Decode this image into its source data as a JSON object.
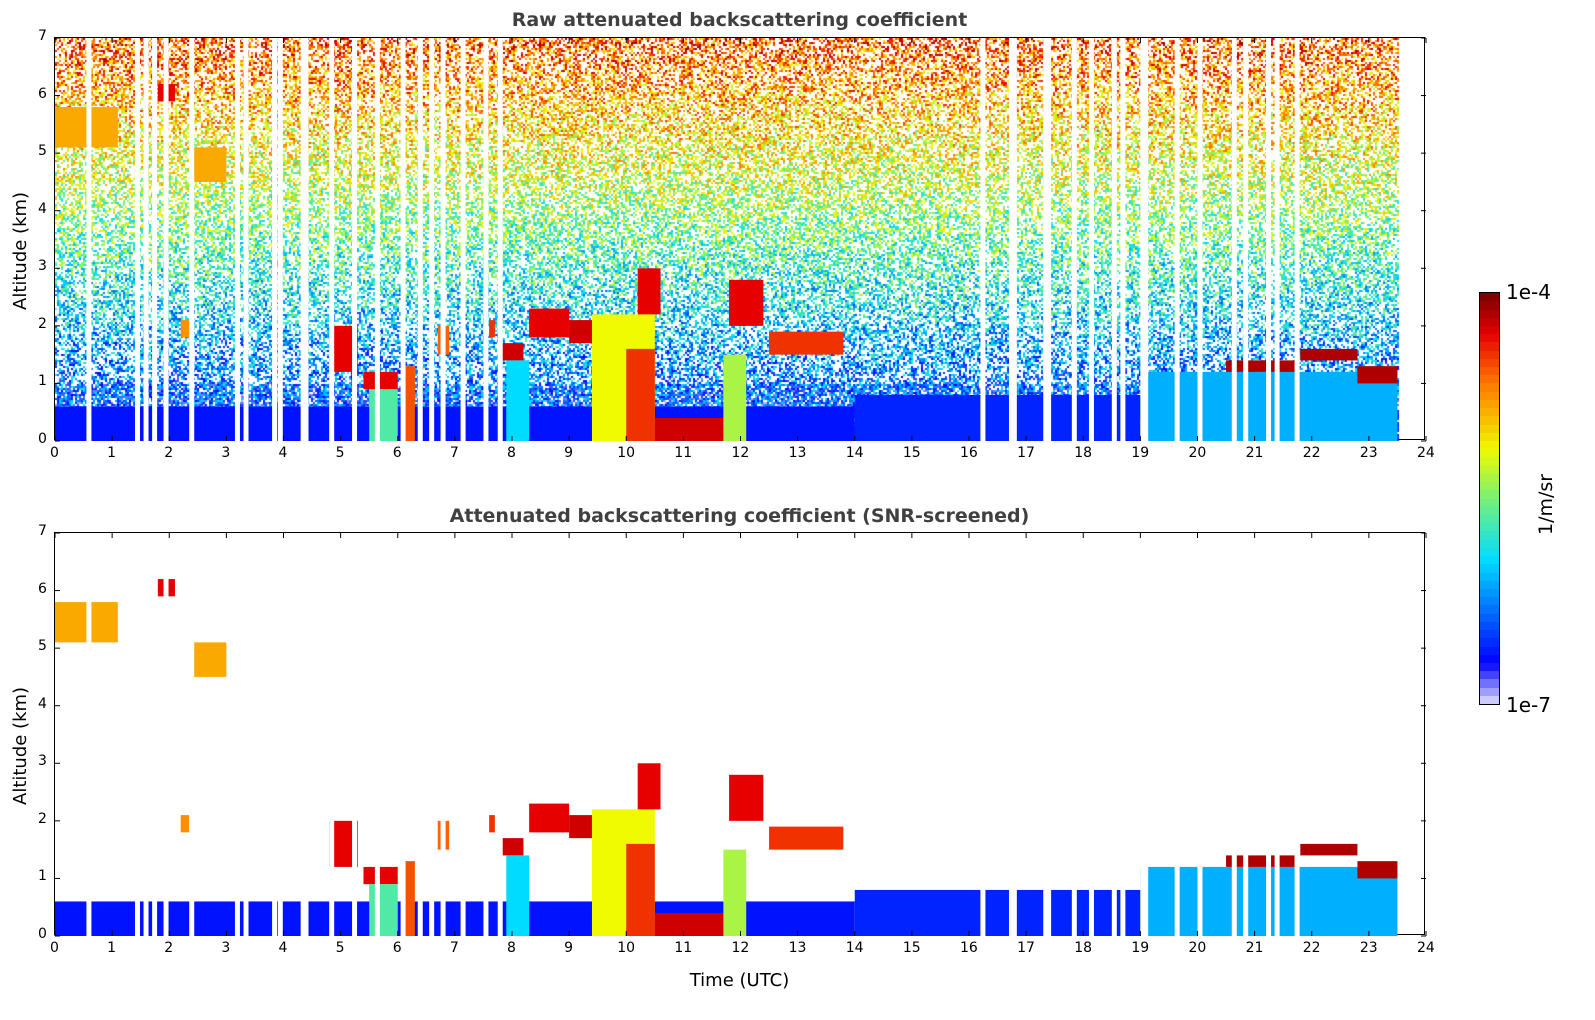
{
  "chart_data": [
    {
      "type": "heatmap",
      "title": "Raw attenuated backscattering coefficient",
      "xlabel": "",
      "ylabel": "Altitude (km)",
      "xlim": [
        0,
        24
      ],
      "ylim": [
        0,
        7
      ],
      "xticks": [
        "0",
        "1",
        "2",
        "3",
        "4",
        "5",
        "6",
        "7",
        "8",
        "9",
        "10",
        "11",
        "12",
        "13",
        "14",
        "15",
        "16",
        "17",
        "18",
        "19",
        "20",
        "21",
        "22",
        "23",
        "24"
      ],
      "yticks": [
        "0",
        "1",
        "2",
        "3",
        "4",
        "5",
        "6",
        "7"
      ],
      "noise": true
    },
    {
      "type": "heatmap",
      "title": "Attenuated backscattering coefficient (SNR-screened)",
      "xlabel": "Time (UTC)",
      "ylabel": "Altitude (km)",
      "xlim": [
        0,
        24
      ],
      "ylim": [
        0,
        7
      ],
      "xticks": [
        "0",
        "1",
        "2",
        "3",
        "4",
        "5",
        "6",
        "7",
        "8",
        "9",
        "10",
        "11",
        "12",
        "13",
        "14",
        "15",
        "16",
        "17",
        "18",
        "19",
        "20",
        "21",
        "22",
        "23",
        "24"
      ],
      "yticks": [
        "0",
        "1",
        "2",
        "3",
        "4",
        "5",
        "6",
        "7"
      ],
      "noise": false
    }
  ],
  "colorbar": {
    "label": "1/m/sr",
    "min_label": "1e-7",
    "max_label": "1e-4",
    "scale": "log",
    "range": [
      1e-07,
      0.0001
    ]
  },
  "layers": [
    {
      "t": [
        0,
        14
      ],
      "z": [
        0,
        0.6
      ],
      "level": 0.12
    },
    {
      "t": [
        14,
        19
      ],
      "z": [
        0,
        0.8
      ],
      "level": 0.14
    },
    {
      "t": [
        19,
        23.5
      ],
      "z": [
        0,
        1.2
      ],
      "level": 0.3
    },
    {
      "t": [
        0,
        1.1
      ],
      "z": [
        5.1,
        5.8
      ],
      "level": 0.72
    },
    {
      "t": [
        1.8,
        2.1
      ],
      "z": [
        5.9,
        6.2
      ],
      "level": 0.9
    },
    {
      "t": [
        2.2,
        2.35
      ],
      "z": [
        1.8,
        2.1
      ],
      "level": 0.75
    },
    {
      "t": [
        2.4,
        3.0
      ],
      "z": [
        4.5,
        5.1
      ],
      "level": 0.72
    },
    {
      "t": [
        4.8,
        5.3
      ],
      "z": [
        1.2,
        2.0
      ],
      "level": 0.9
    },
    {
      "t": [
        5.4,
        6.0
      ],
      "z": [
        0.9,
        1.2
      ],
      "level": 0.9
    },
    {
      "t": [
        5.5,
        6.0
      ],
      "z": [
        0,
        0.9
      ],
      "level": 0.45
    },
    {
      "t": [
        6.1,
        6.3
      ],
      "z": [
        0,
        1.3
      ],
      "level": 0.82
    },
    {
      "t": [
        6.7,
        6.9
      ],
      "z": [
        1.5,
        2.0
      ],
      "level": 0.8
    },
    {
      "t": [
        7.6,
        7.7
      ],
      "z": [
        1.8,
        2.1
      ],
      "level": 0.85
    },
    {
      "t": [
        7.8,
        8.2
      ],
      "z": [
        1.4,
        1.7
      ],
      "level": 0.92
    },
    {
      "t": [
        7.9,
        8.3
      ],
      "z": [
        0,
        1.4
      ],
      "level": 0.35
    },
    {
      "t": [
        8.3,
        9.0
      ],
      "z": [
        1.8,
        2.3
      ],
      "level": 0.9
    },
    {
      "t": [
        9.0,
        9.4
      ],
      "z": [
        1.7,
        2.1
      ],
      "level": 0.92
    },
    {
      "t": [
        9.4,
        10.5
      ],
      "z": [
        0,
        2.2
      ],
      "level": 0.62
    },
    {
      "t": [
        10.0,
        10.5
      ],
      "z": [
        0,
        1.6
      ],
      "level": 0.85
    },
    {
      "t": [
        10.2,
        10.6
      ],
      "z": [
        2.2,
        3.0
      ],
      "level": 0.9
    },
    {
      "t": [
        10.5,
        11.7
      ],
      "z": [
        0,
        0.4
      ],
      "level": 0.92
    },
    {
      "t": [
        11.7,
        12.1
      ],
      "z": [
        0,
        1.5
      ],
      "level": 0.55
    },
    {
      "t": [
        11.8,
        12.4
      ],
      "z": [
        2.0,
        2.8
      ],
      "level": 0.9
    },
    {
      "t": [
        12.5,
        13.8
      ],
      "z": [
        1.5,
        1.9
      ],
      "level": 0.85
    },
    {
      "t": [
        20.5,
        21.7
      ],
      "z": [
        1.2,
        1.4
      ],
      "level": 0.95
    },
    {
      "t": [
        21.8,
        22.8
      ],
      "z": [
        1.4,
        1.6
      ],
      "level": 0.95
    },
    {
      "t": [
        22.8,
        23.5
      ],
      "z": [
        1.0,
        1.3
      ],
      "level": 0.95
    }
  ],
  "missing_profiles": [
    0.55,
    1.4,
    1.55,
    1.7,
    1.9,
    2.35,
    3.15,
    3.3,
    3.8,
    3.9,
    4.3,
    4.35,
    4.8,
    5.2,
    5.6,
    6.05,
    6.35,
    6.55,
    6.75,
    7.1,
    7.5,
    7.75,
    16.2,
    16.7,
    16.75,
    17.3,
    17.35,
    17.8,
    18.1,
    18.5,
    18.65,
    19.0,
    19.05,
    19.6,
    20.0,
    20.6,
    20.8,
    21.2,
    21.35,
    21.7
  ]
}
